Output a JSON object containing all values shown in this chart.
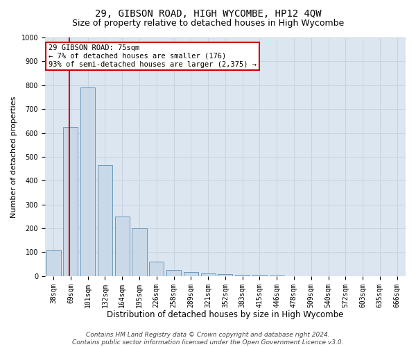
{
  "title": "29, GIBSON ROAD, HIGH WYCOMBE, HP12 4QW",
  "subtitle": "Size of property relative to detached houses in High Wycombe",
  "xlabel": "Distribution of detached houses by size in High Wycombe",
  "ylabel": "Number of detached properties",
  "categories": [
    "38sqm",
    "69sqm",
    "101sqm",
    "132sqm",
    "164sqm",
    "195sqm",
    "226sqm",
    "258sqm",
    "289sqm",
    "321sqm",
    "352sqm",
    "383sqm",
    "415sqm",
    "446sqm",
    "478sqm",
    "509sqm",
    "540sqm",
    "572sqm",
    "603sqm",
    "635sqm",
    "666sqm"
  ],
  "bar_heights": [
    110,
    625,
    790,
    465,
    250,
    200,
    60,
    25,
    18,
    12,
    8,
    5,
    5,
    2,
    1,
    1,
    1,
    0,
    0,
    0,
    0
  ],
  "bar_color": "#c9d9e8",
  "bar_edge_color": "#5b8db8",
  "annotation_text": "29 GIBSON ROAD: 75sqm\n← 7% of detached houses are smaller (176)\n93% of semi-detached houses are larger (2,375) →",
  "annotation_box_color": "#ffffff",
  "annotation_box_edge_color": "#cc0000",
  "vline_color": "#cc0000",
  "vline_x_index": 0.93,
  "ylim": [
    0,
    1000
  ],
  "yticks": [
    0,
    100,
    200,
    300,
    400,
    500,
    600,
    700,
    800,
    900,
    1000
  ],
  "grid_color": "#c5d0df",
  "background_color": "#dce6f0",
  "footer_line1": "Contains HM Land Registry data © Crown copyright and database right 2024.",
  "footer_line2": "Contains public sector information licensed under the Open Government Licence v3.0.",
  "title_fontsize": 10,
  "subtitle_fontsize": 9,
  "xlabel_fontsize": 8.5,
  "ylabel_fontsize": 8,
  "tick_fontsize": 7,
  "footer_fontsize": 6.5,
  "annot_fontsize": 7.5
}
